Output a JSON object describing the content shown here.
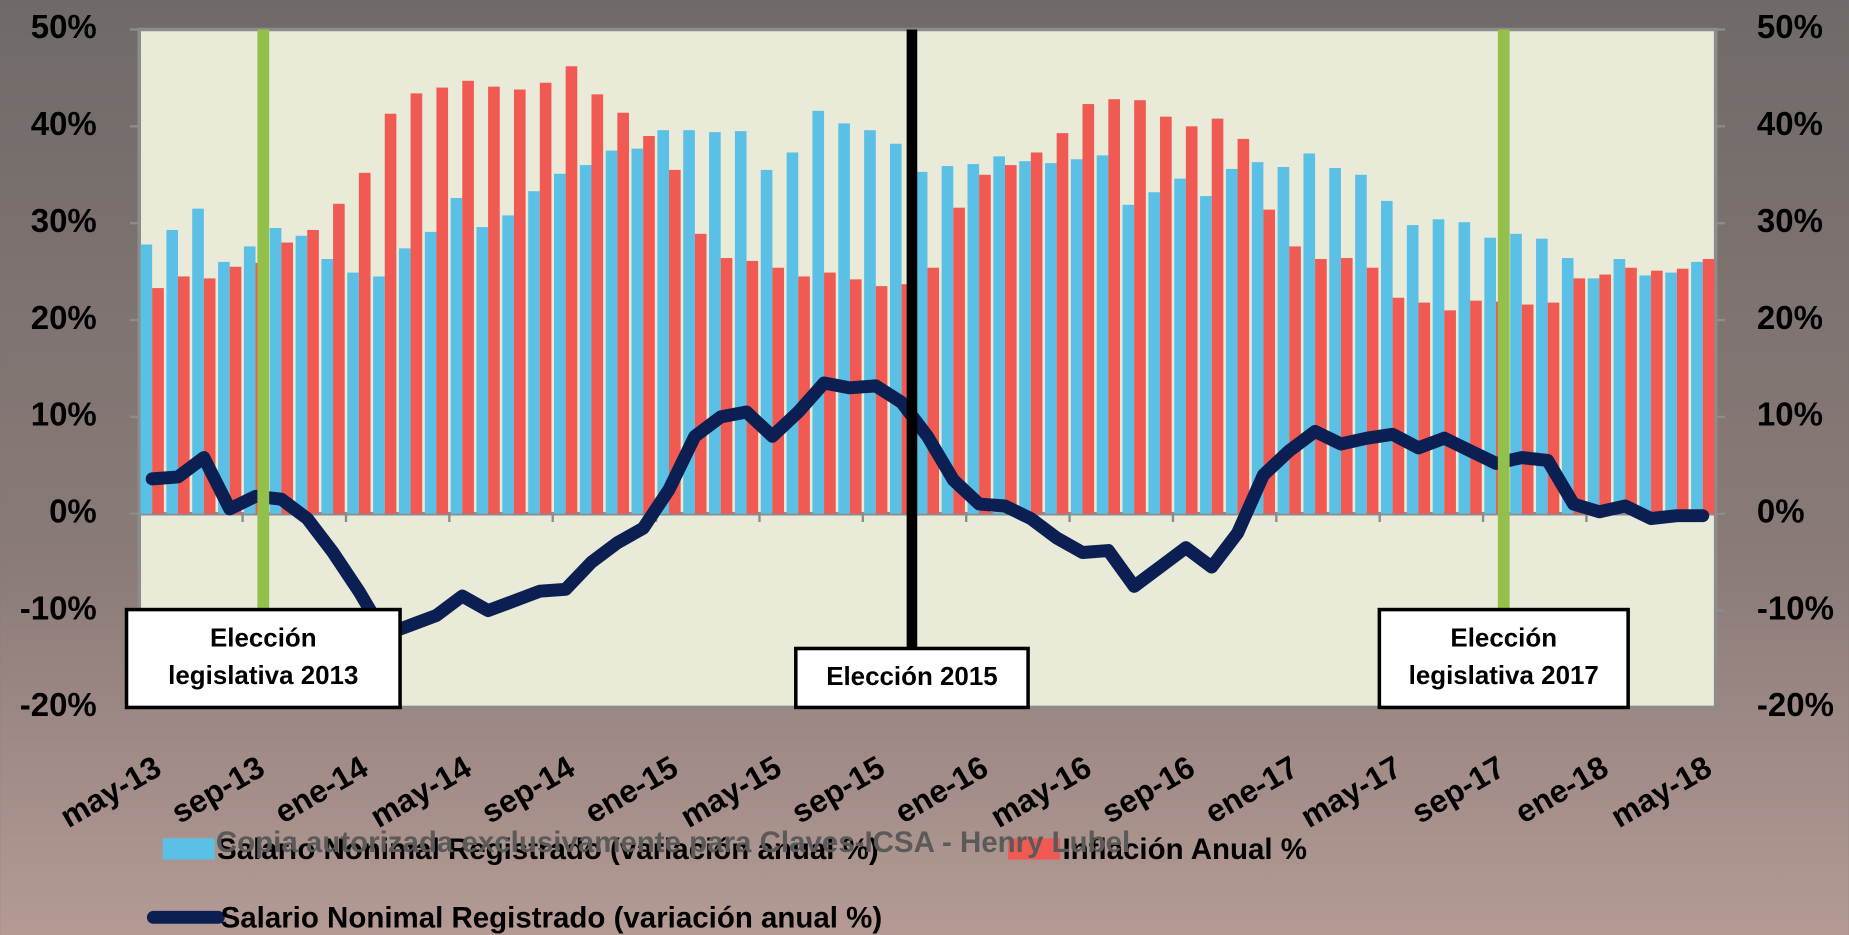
{
  "chart_data": {
    "type": "bar",
    "categories": [
      "may-13",
      null,
      null,
      null,
      "sep-13",
      null,
      null,
      null,
      "ene-14",
      null,
      null,
      null,
      "may-14",
      null,
      null,
      null,
      "sep-14",
      null,
      null,
      null,
      "ene-15",
      null,
      null,
      null,
      "may-15",
      null,
      null,
      null,
      "sep-15",
      null,
      null,
      null,
      "ene-16",
      null,
      null,
      null,
      "may-16",
      null,
      null,
      null,
      "sep-16",
      null,
      null,
      null,
      "ene-17",
      null,
      null,
      null,
      "may-17",
      null,
      null,
      null,
      "sep-17",
      null,
      null,
      null,
      "ene-18",
      null,
      null,
      null,
      "may-18"
    ],
    "series": [
      {
        "name": "Salario Nonimal Registrado (variación anual %)",
        "type": "bar",
        "color": "#5bc0e6",
        "values": [
          27.8,
          29.3,
          31.5,
          26,
          27.6,
          29.5,
          28.7,
          26.3,
          24.9,
          24.5,
          27.4,
          29.1,
          32.6,
          29.6,
          30.8,
          33.3,
          35.1,
          36,
          37.5,
          37.7,
          39.6,
          39.6,
          39.4,
          39.5,
          35.5,
          37.3,
          41.6,
          40.3,
          39.6,
          38.2,
          35.3,
          35.9,
          36.1,
          36.9,
          36.4,
          36.2,
          36.6,
          37,
          31.9,
          33.2,
          34.6,
          32.8,
          35.6,
          36.3,
          35.8,
          37.2,
          35.7,
          35,
          32.3,
          29.8,
          30.4,
          30.1,
          28.5,
          28.9,
          28.4,
          26.4,
          24.3,
          26.3,
          24.6,
          24.9,
          26
        ]
      },
      {
        "name": "Inflación Anual %",
        "type": "bar",
        "color": "#f05a52",
        "values": [
          23.3,
          24.5,
          24.3,
          25.5,
          25.9,
          28,
          29.3,
          32,
          35.2,
          41.3,
          43.4,
          44,
          44.7,
          44.1,
          43.8,
          44.5,
          46.2,
          43.3,
          41.4,
          39,
          35.5,
          28.9,
          26.4,
          26.1,
          25.4,
          24.5,
          24.9,
          24.2,
          23.5,
          23.7,
          25.4,
          31.6,
          35,
          36,
          37.3,
          39.3,
          42.3,
          42.8,
          42.7,
          41,
          40,
          40.8,
          38.7,
          31.4,
          27.6,
          26.3,
          26.4,
          25.4,
          22.3,
          21.8,
          21,
          22,
          21.9,
          21.6,
          21.8,
          24.3,
          24.7,
          25.4,
          25.1,
          25.3,
          26.3
        ]
      },
      {
        "name": "Salario Nonimal Registrado (variación anual %)",
        "type": "line",
        "color": "#0c1f52",
        "values": [
          3.6,
          3.8,
          5.8,
          0.5,
          1.8,
          1.5,
          -0.5,
          -4,
          -8,
          -12.5,
          -11.5,
          -10.5,
          -8.5,
          -10,
          -9,
          -8,
          -7.8,
          -5,
          -3,
          -1.5,
          2.5,
          8,
          10,
          10.5,
          8,
          10.5,
          13.5,
          13,
          13.2,
          11.5,
          8,
          3.5,
          1,
          0.8,
          -0.5,
          -2.5,
          -4,
          -3.8,
          -7.5,
          -5.5,
          -3.5,
          -5.5,
          -2,
          4,
          6.5,
          8.5,
          7.2,
          7.8,
          8.2,
          6.8,
          7.8,
          6.5,
          5.2,
          5.8,
          5.5,
          1,
          0.2,
          0.8,
          -0.5,
          -0.2,
          -0.2
        ]
      }
    ],
    "ylim": [
      -20,
      50
    ],
    "yticks": [
      {
        "value": -20,
        "label": "-20%"
      },
      {
        "value": -10,
        "label": "-10%"
      },
      {
        "value": 0,
        "label": "0%"
      },
      {
        "value": 10,
        "label": "10%"
      },
      {
        "value": 20,
        "label": "20%"
      },
      {
        "value": 30,
        "label": "30%"
      },
      {
        "value": 40,
        "label": "40%"
      },
      {
        "value": 50,
        "label": "50%"
      }
    ],
    "y2lim": [
      -20,
      50
    ],
    "y2ticks": [
      {
        "value": -20,
        "label": "-20%"
      },
      {
        "value": -10,
        "label": "-10%"
      },
      {
        "value": 0,
        "label": "0%"
      },
      {
        "value": 10,
        "label": "10%"
      },
      {
        "value": 20,
        "label": "20%"
      },
      {
        "value": 30,
        "label": "30%"
      },
      {
        "value": 40,
        "label": "40%"
      },
      {
        "value": 50,
        "label": "50%"
      }
    ],
    "annotations": [
      {
        "text": [
          "Elección",
          "legislativa 2013"
        ],
        "x": 4.3,
        "color": "#92c04a"
      },
      {
        "text": [
          "Elección 2015"
        ],
        "x": 29.4,
        "color": "#000000"
      },
      {
        "text": [
          "Elección",
          "legislativa 2017"
        ],
        "x": 52.3,
        "color": "#92c04a"
      }
    ],
    "watermark": "Copia autorizada exclusivamente para Claves-ICSA - Henry Lubel"
  }
}
